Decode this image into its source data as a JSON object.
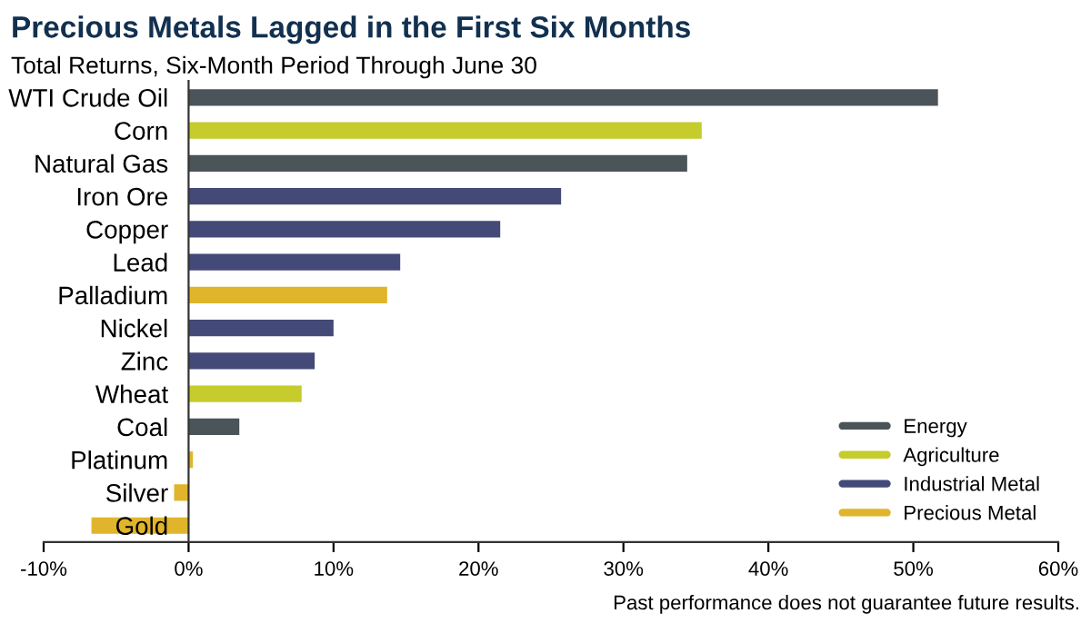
{
  "chart_data": {
    "type": "bar",
    "orientation": "horizontal",
    "title": "Precious Metals Lagged in the First Six Months",
    "subtitle": "Total Returns, Six-Month Period Through June 30",
    "categories": [
      "WTI Crude Oil",
      "Corn",
      "Natural Gas",
      "Iron Ore",
      "Copper",
      "Lead",
      "Palladium",
      "Nickel",
      "Zinc",
      "Wheat",
      "Coal",
      "Platinum",
      "Silver",
      "Gold"
    ],
    "series": [
      {
        "name": "Energy",
        "color": "#4a5459",
        "values": [
          51.7,
          null,
          34.4,
          null,
          null,
          null,
          null,
          null,
          null,
          null,
          3.5,
          null,
          null,
          null
        ]
      },
      {
        "name": "Agriculture",
        "color": "#c5cc2b",
        "values": [
          null,
          35.4,
          null,
          null,
          null,
          null,
          null,
          null,
          null,
          7.8,
          null,
          null,
          null,
          null
        ]
      },
      {
        "name": "Industrial Metal",
        "color": "#434a78",
        "values": [
          null,
          null,
          null,
          25.7,
          21.5,
          14.6,
          null,
          10.0,
          8.7,
          null,
          null,
          null,
          null,
          null
        ]
      },
      {
        "name": "Precious Metal",
        "color": "#e0b52b",
        "values": [
          null,
          null,
          null,
          null,
          null,
          null,
          13.7,
          null,
          null,
          null,
          null,
          0.3,
          -1.0,
          -6.7
        ]
      }
    ],
    "xlim": [
      -10,
      60
    ],
    "xticks": [
      {
        "value": -10,
        "label": "-10%"
      },
      {
        "value": 0,
        "label": "0%"
      },
      {
        "value": 10,
        "label": "10%"
      },
      {
        "value": 20,
        "label": "20%"
      },
      {
        "value": 30,
        "label": "30%"
      },
      {
        "value": 40,
        "label": "40%"
      },
      {
        "value": 50,
        "label": "50%"
      },
      {
        "value": 60,
        "label": "60%"
      }
    ],
    "grid": false,
    "legend": "bottom right",
    "annotations": [
      "Past performance does not guarantee future results."
    ]
  }
}
